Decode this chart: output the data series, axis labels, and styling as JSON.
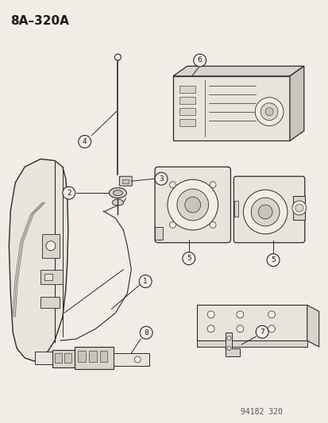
{
  "title": "8A–320A",
  "background_color": "#f0ede6",
  "part_number": "94182 320",
  "text_color": "#1a1a1a",
  "line_color": "#2a2a2a",
  "fill_light": "#e8e4dc",
  "fill_mid": "#d8d4cc",
  "fill_dark": "#c8c4bc"
}
